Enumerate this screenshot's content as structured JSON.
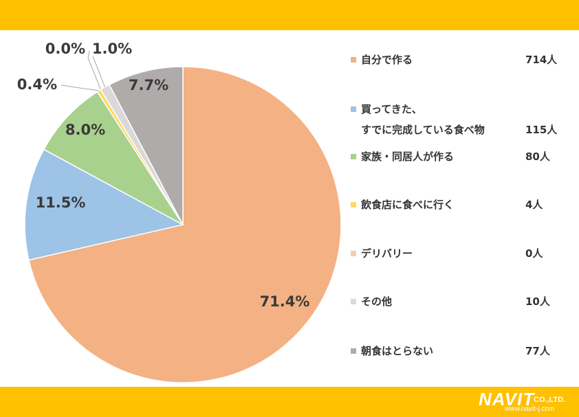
{
  "theme": {
    "band_color": "#FFC000"
  },
  "logo": {
    "name": "NAVIT",
    "suffix": "CO.,LTD.",
    "url": "www.navit-j.com"
  },
  "chart_data": {
    "type": "pie",
    "title": "",
    "legend_position": "right",
    "slices": [
      {
        "label": "自分で作る",
        "count": "714人",
        "value": 71.4,
        "display": "71.4%",
        "color": "#F4B183"
      },
      {
        "label": "買ってきた、すでに完成している食べ物",
        "label_lines": [
          "買ってきた、",
          "すでに完成している食べ物"
        ],
        "count": "115人",
        "value": 11.5,
        "display": "11.5%",
        "color": "#9DC3E6"
      },
      {
        "label": "家族・同居人が作る",
        "count": "80人",
        "value": 8.0,
        "display": "8.0%",
        "color": "#A9D18E"
      },
      {
        "label": "飲食店に食べに行く",
        "count": "4人",
        "value": 0.4,
        "display": "0.4%",
        "color": "#FFD966"
      },
      {
        "label": "デリバリー",
        "count": "0人",
        "value": 0.0,
        "display": "0.0%",
        "color": "#F8CBAD"
      },
      {
        "label": "その他",
        "count": "10人",
        "value": 1.0,
        "display": "1.0%",
        "color": "#D9D9D9"
      },
      {
        "label": "朝食はとらない",
        "count": "77人",
        "value": 7.7,
        "display": "7.7%",
        "color": "#AFABAB"
      }
    ]
  }
}
